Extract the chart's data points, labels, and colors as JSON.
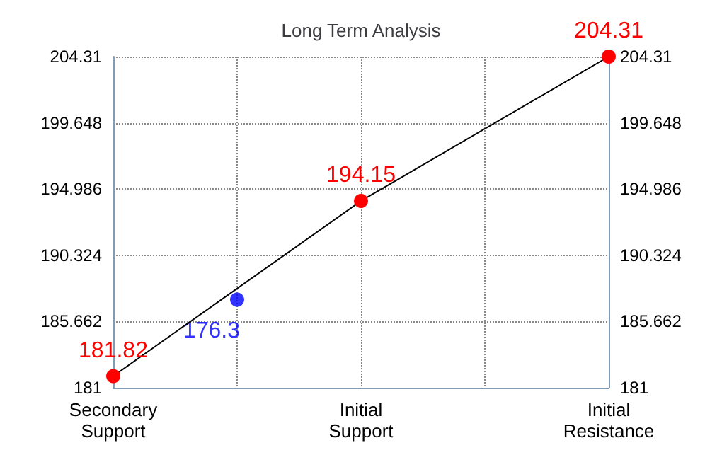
{
  "chart_data": {
    "type": "line",
    "title": "Long Term Analysis",
    "categories": [
      "Secondary Support",
      null,
      null,
      null,
      "Initial Support",
      null,
      null,
      null,
      "Initial Resistance"
    ],
    "ylim": [
      181,
      204.31
    ],
    "yticks": [
      181,
      185.662,
      190.324,
      194.986,
      199.648,
      204.31
    ],
    "y2lim": [
      181,
      204.31
    ],
    "y2ticks": [
      181,
      185.662,
      190.324,
      194.986,
      199.648,
      204.31
    ],
    "series": [
      {
        "color": "#ff0000",
        "values": [
          181.82,
          null,
          null,
          null,
          194.15,
          null,
          null,
          null,
          204.31
        ],
        "data_labels": true
      },
      {
        "type": "scatter",
        "color": "#0000ff",
        "values": [
          null,
          null,
          187.2,
          null,
          null,
          null,
          null,
          null,
          null
        ]
      }
    ],
    "annotations": [
      "176.3"
    ],
    "grid": true,
    "marker": "circle"
  }
}
